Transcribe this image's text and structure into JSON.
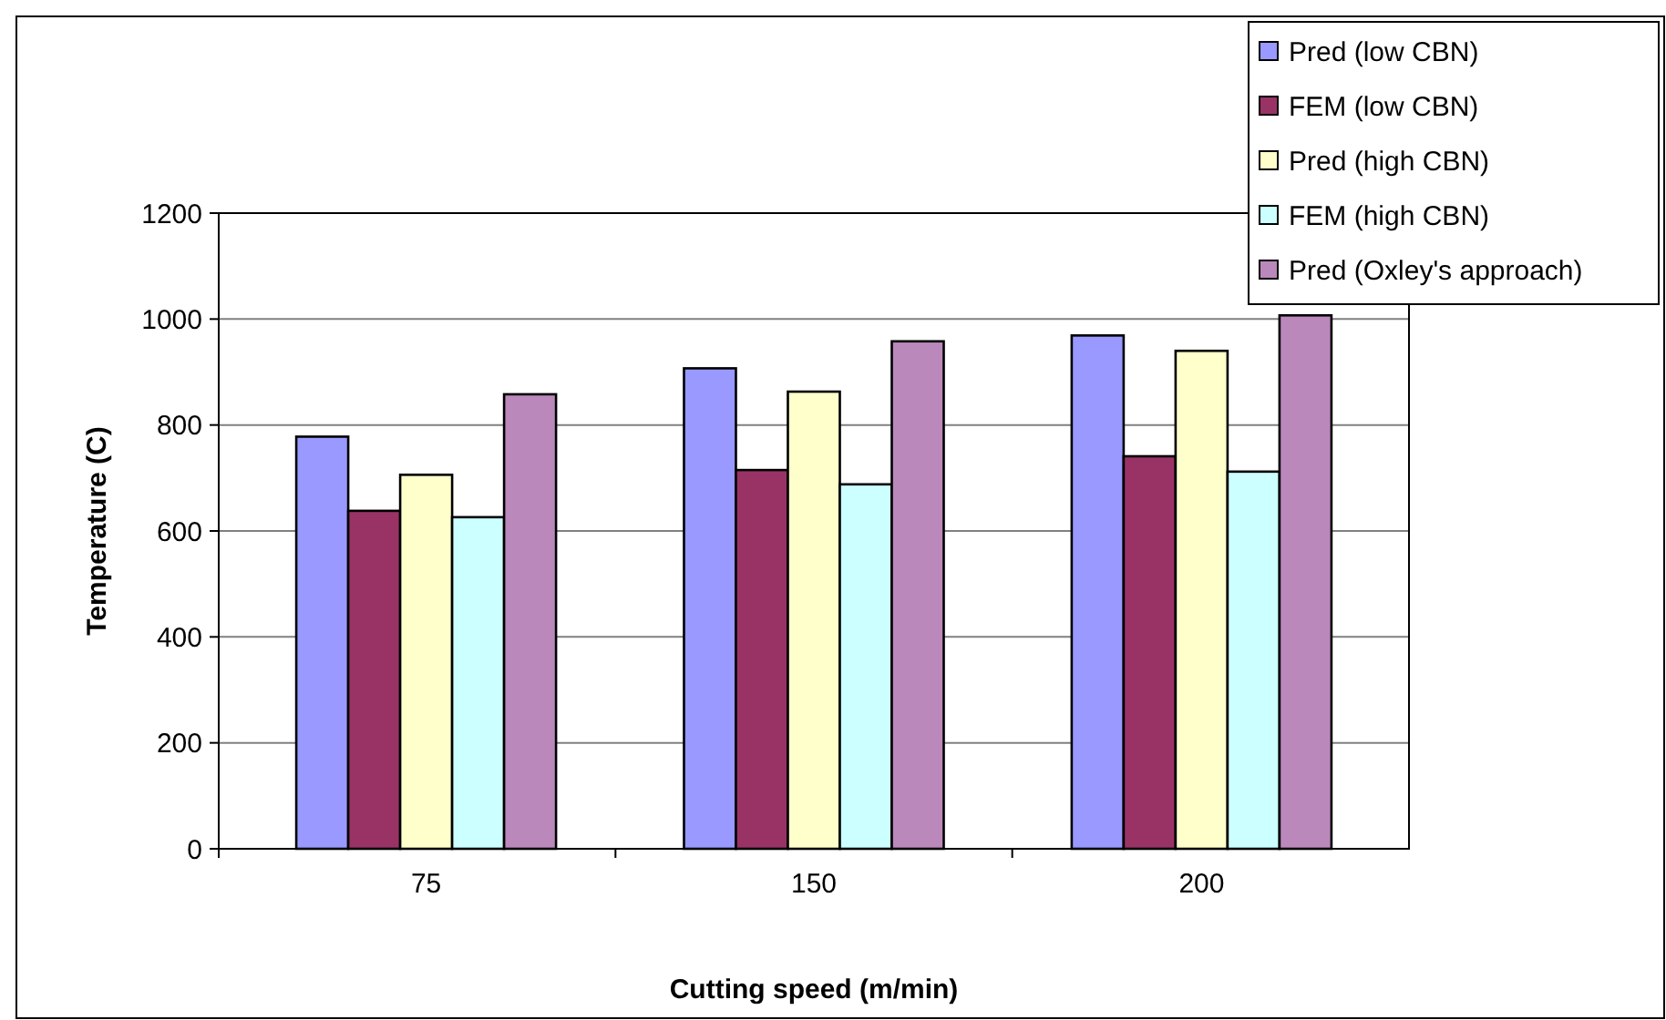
{
  "chart_data": {
    "type": "bar",
    "xlabel": "Cutting speed (m/min)",
    "ylabel": "Temperature (C)",
    "categories": [
      "75",
      "150",
      "200"
    ],
    "series": [
      {
        "name": "Pred (low  CBN)",
        "color": "#9999ff",
        "values": [
          778,
          907,
          969
        ]
      },
      {
        "name": "FEM (low  CBN)",
        "color": "#993366",
        "values": [
          638,
          715,
          741
        ]
      },
      {
        "name": "Pred (high CBN)",
        "color": "#ffffcc",
        "values": [
          706,
          863,
          940
        ]
      },
      {
        "name": "FEM (high CBN)",
        "color": "#ccffff",
        "values": [
          626,
          688,
          712
        ]
      },
      {
        "name": "Pred (Oxley's approach)",
        "color": "#bb88bb",
        "values": [
          858,
          958,
          1007
        ]
      }
    ],
    "ylim": [
      0,
      1200
    ],
    "yticks": [
      0,
      200,
      400,
      600,
      800,
      1000,
      1200
    ],
    "grid": "y",
    "legend": "top right"
  }
}
